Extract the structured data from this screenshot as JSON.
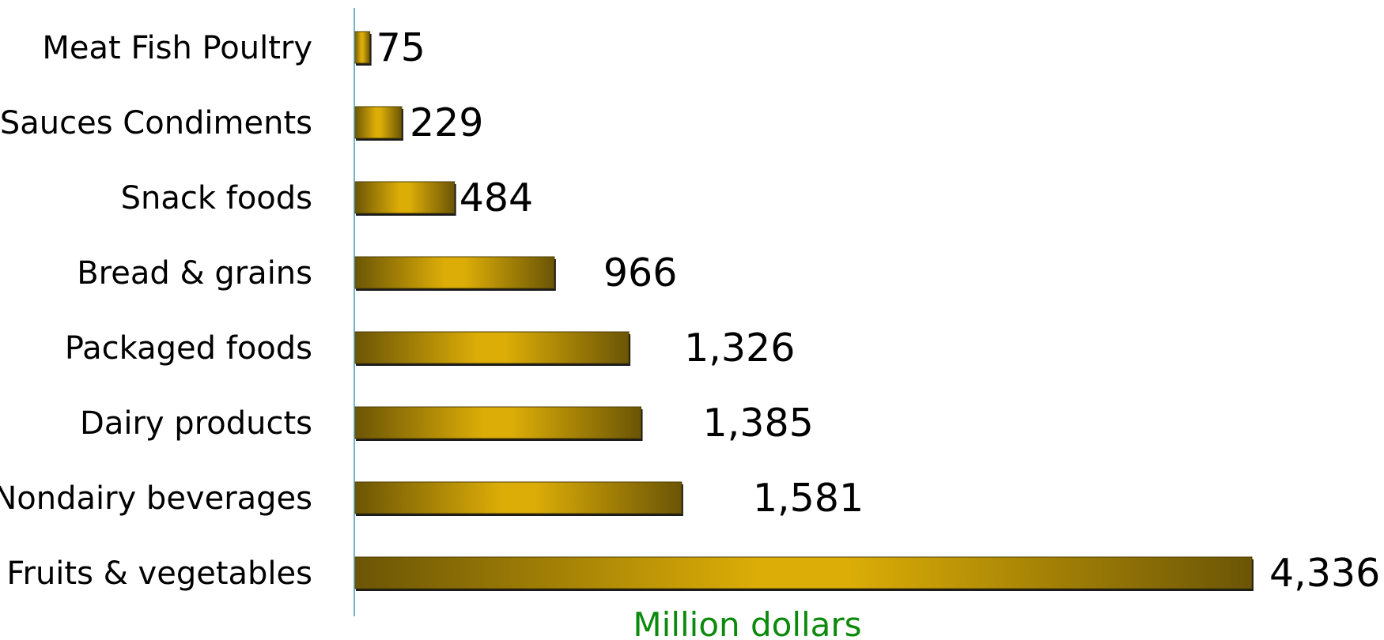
{
  "chart_data": {
    "type": "bar",
    "orientation": "horizontal",
    "categories": [
      "Meat Fish Poultry",
      "Sauces Condiments",
      "Snack foods",
      "Bread & grains",
      "Packaged foods",
      "Dairy products",
      "Nondairy beverages",
      "Fruits & vegetables"
    ],
    "values": [
      75,
      229,
      484,
      966,
      1326,
      1385,
      1581,
      4336
    ],
    "value_labels": [
      "75",
      "229",
      "484",
      "966",
      "1,326",
      "1,385",
      "1,581",
      "4,336"
    ],
    "xlabel": "Million dollars",
    "xlim": [
      0,
      4336
    ],
    "grid": false,
    "legend": "none"
  },
  "colors": {
    "bar_dark": "#6b5506",
    "bar_light": "#dcad07",
    "axis_line": "#4a9bb5",
    "xlabel": "#0b8a0b"
  }
}
